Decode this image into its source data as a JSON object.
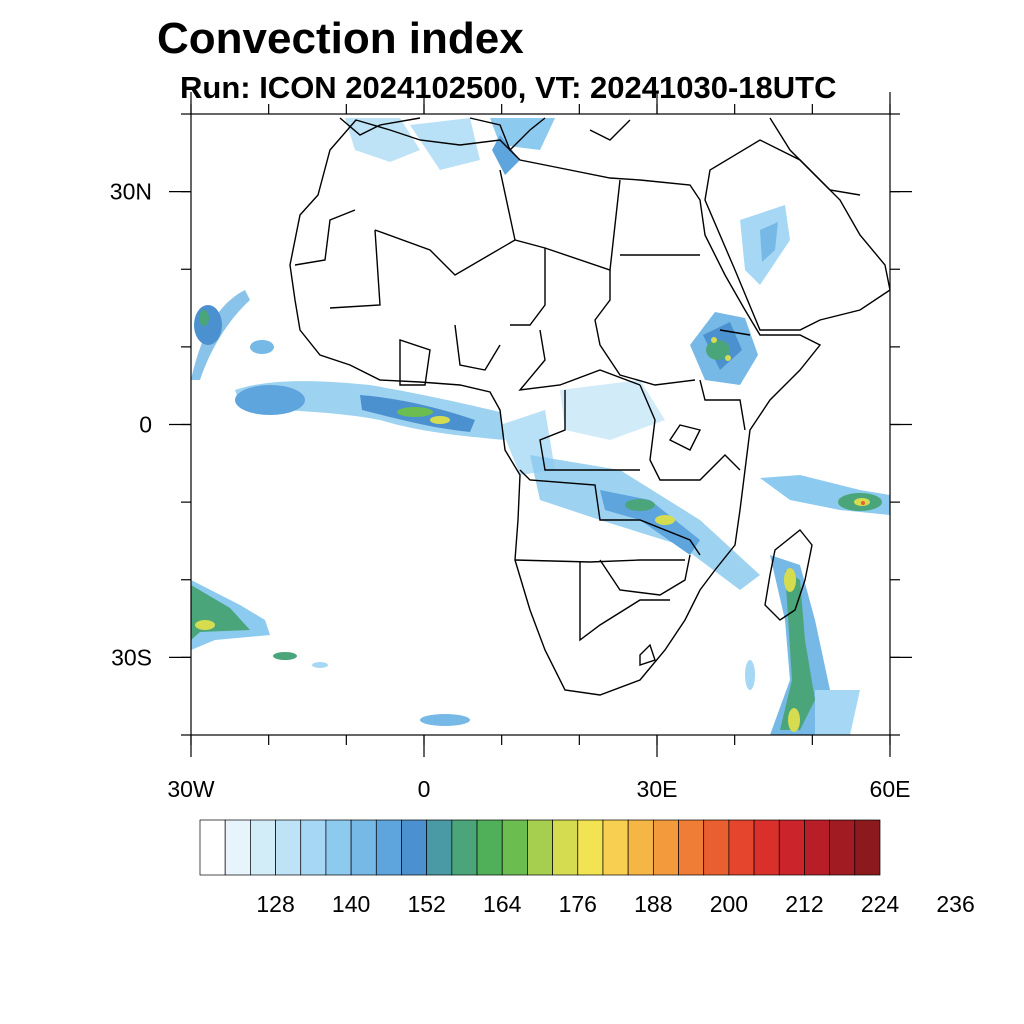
{
  "title": "Convection index",
  "subtitle": "Run: ICON 2024102500,  VT: 20241030-18UTC",
  "map": {
    "lon_range": [
      -30,
      60
    ],
    "lat_range": [
      -40,
      40
    ],
    "lat_ticks": [
      {
        "value": 30,
        "label": "30N"
      },
      {
        "value": 0,
        "label": "0"
      },
      {
        "value": -30,
        "label": "30S"
      }
    ],
    "lon_ticks": [
      {
        "value": -30,
        "label": "30W"
      },
      {
        "value": 0,
        "label": "0"
      },
      {
        "value": 30,
        "label": "30E"
      },
      {
        "value": 60,
        "label": "60E"
      }
    ]
  },
  "colorbar": {
    "start": 116,
    "step": 4,
    "colors": [
      "#ffffff",
      "#e8f4fc",
      "#d2ecf8",
      "#bee3f7",
      "#a6d8f5",
      "#8ccaef",
      "#76b8e6",
      "#5fa5dd",
      "#4c91cf",
      "#4a9aa6",
      "#4aa57a",
      "#4fb059",
      "#6bbd4f",
      "#a7cf4f",
      "#d5dc50",
      "#f2e352",
      "#f8cf50",
      "#f6b646",
      "#f39a3d",
      "#ef7d36",
      "#ea5f2f",
      "#e4452c",
      "#da302c",
      "#cb242b",
      "#b81e28",
      "#a11c22",
      "#8c1a1c"
    ],
    "labels": [
      {
        "value": 128,
        "label": "128"
      },
      {
        "value": 140,
        "label": "140"
      },
      {
        "value": 152,
        "label": "152"
      },
      {
        "value": 164,
        "label": "164"
      },
      {
        "value": 176,
        "label": "176"
      },
      {
        "value": 188,
        "label": "188"
      },
      {
        "value": 200,
        "label": "200"
      },
      {
        "value": 212,
        "label": "212"
      },
      {
        "value": 224,
        "label": "224"
      },
      {
        "value": 236,
        "label": "236"
      }
    ]
  }
}
